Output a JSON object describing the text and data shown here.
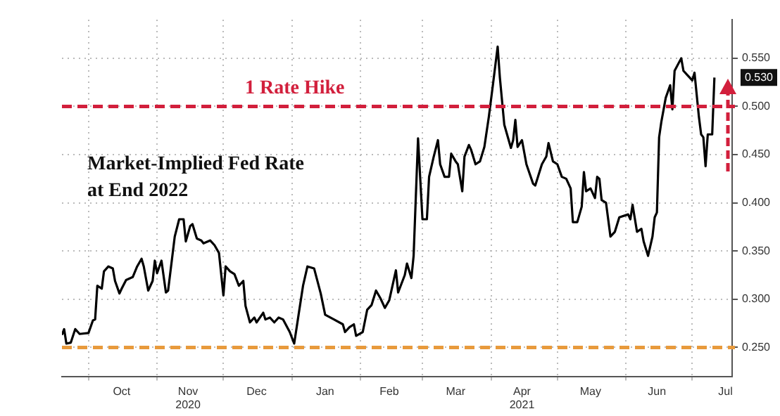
{
  "chart_data": {
    "type": "line",
    "title": "Market-Implied Fed Rate\nat End 2022",
    "x": [
      "2020-09-19",
      "2020-09-20",
      "2020-09-21",
      "2020-09-23",
      "2020-09-25",
      "2020-09-27",
      "2020-10-01",
      "2020-10-03",
      "2020-10-04",
      "2020-10-05",
      "2020-10-07",
      "2020-10-08",
      "2020-10-10",
      "2020-10-12",
      "2020-10-13",
      "2020-10-15",
      "2020-10-16",
      "2020-10-18",
      "2020-10-21",
      "2020-10-23",
      "2020-10-25",
      "2020-10-26",
      "2020-10-28",
      "2020-10-30",
      "2020-10-31",
      "2020-11-01",
      "2020-11-03",
      "2020-11-05",
      "2020-11-06",
      "2020-11-09",
      "2020-11-11",
      "2020-11-13",
      "2020-11-14",
      "2020-11-16",
      "2020-11-17",
      "2020-11-19",
      "2020-11-21",
      "2020-11-22",
      "2020-11-25",
      "2020-11-27",
      "2020-11-29",
      "2020-12-01",
      "2020-12-02",
      "2020-12-04",
      "2020-12-06",
      "2020-12-08",
      "2020-12-10",
      "2020-12-11",
      "2020-12-13",
      "2020-12-15",
      "2020-12-16",
      "2020-12-19",
      "2020-12-20",
      "2020-12-22",
      "2020-12-24",
      "2020-12-26",
      "2020-12-28",
      "2020-12-31",
      "2021-01-02",
      "2021-01-04",
      "2021-01-06",
      "2021-01-08",
      "2021-01-11",
      "2021-01-14",
      "2021-01-16",
      "2021-01-20",
      "2021-01-24",
      "2021-01-25",
      "2021-01-27",
      "2021-01-29",
      "2021-01-30",
      "2021-02-02",
      "2021-02-04",
      "2021-02-06",
      "2021-02-08",
      "2021-02-10",
      "2021-02-12",
      "2021-02-14",
      "2021-02-17",
      "2021-02-18",
      "2021-02-21",
      "2021-02-22",
      "2021-02-24",
      "2021-02-25",
      "2021-02-27",
      "2021-03-01",
      "2021-03-03",
      "2021-03-04",
      "2021-03-06",
      "2021-03-08",
      "2021-03-09",
      "2021-03-11",
      "2021-03-13",
      "2021-03-14",
      "2021-03-16",
      "2021-03-17",
      "2021-03-19",
      "2021-03-20",
      "2021-03-22",
      "2021-03-23",
      "2021-03-25",
      "2021-03-27",
      "2021-03-29",
      "2021-03-31",
      "2021-04-02",
      "2021-04-04",
      "2021-04-05",
      "2021-04-07",
      "2021-04-10",
      "2021-04-11",
      "2021-04-12",
      "2021-04-13",
      "2021-04-15",
      "2021-04-17",
      "2021-04-20",
      "2021-04-21",
      "2021-04-24",
      "2021-04-26",
      "2021-04-27",
      "2021-04-29",
      "2021-05-01",
      "2021-05-03",
      "2021-05-05",
      "2021-05-07",
      "2021-05-08",
      "2021-05-10",
      "2021-05-12",
      "2021-05-13",
      "2021-05-14",
      "2021-05-16",
      "2021-05-18",
      "2021-05-19",
      "2021-05-20",
      "2021-05-21",
      "2021-05-23",
      "2021-05-25",
      "2021-05-27",
      "2021-05-29",
      "2021-06-02",
      "2021-06-03",
      "2021-06-04",
      "2021-06-06",
      "2021-06-08",
      "2021-06-09",
      "2021-06-11",
      "2021-06-13",
      "2021-06-14",
      "2021-06-15",
      "2021-06-16",
      "2021-06-17",
      "2021-06-19",
      "2021-06-21",
      "2021-06-22",
      "2021-06-23",
      "2021-06-26",
      "2021-06-27",
      "2021-06-29",
      "2021-07-01",
      "2021-07-02",
      "2021-07-04",
      "2021-07-05",
      "2021-07-06",
      "2021-07-07",
      "2021-07-08",
      "2021-07-10",
      "2021-07-11"
    ],
    "series": [
      {
        "color": "#000000",
        "values": [
          0.263,
          0.269,
          0.254,
          0.255,
          0.269,
          0.264,
          0.265,
          0.278,
          0.279,
          0.314,
          0.311,
          0.329,
          0.334,
          0.332,
          0.319,
          0.306,
          0.311,
          0.32,
          0.323,
          0.334,
          0.342,
          0.334,
          0.309,
          0.319,
          0.34,
          0.327,
          0.34,
          0.307,
          0.309,
          0.365,
          0.383,
          0.383,
          0.36,
          0.376,
          0.378,
          0.363,
          0.361,
          0.358,
          0.361,
          0.356,
          0.348,
          0.304,
          0.334,
          0.329,
          0.326,
          0.314,
          0.319,
          0.293,
          0.276,
          0.281,
          0.276,
          0.286,
          0.279,
          0.281,
          0.276,
          0.281,
          0.279,
          0.266,
          0.254,
          0.284,
          0.314,
          0.334,
          0.332,
          0.306,
          0.284,
          0.279,
          0.274,
          0.266,
          0.271,
          0.274,
          0.262,
          0.266,
          0.289,
          0.294,
          0.309,
          0.301,
          0.291,
          0.299,
          0.33,
          0.307,
          0.325,
          0.337,
          0.322,
          0.345,
          0.467,
          0.383,
          0.383,
          0.427,
          0.447,
          0.465,
          0.44,
          0.427,
          0.427,
          0.451,
          0.443,
          0.44,
          0.412,
          0.448,
          0.46,
          0.455,
          0.44,
          0.443,
          0.458,
          0.489,
          0.525,
          0.562,
          0.53,
          0.481,
          0.457,
          0.465,
          0.486,
          0.458,
          0.465,
          0.44,
          0.42,
          0.418,
          0.44,
          0.448,
          0.462,
          0.443,
          0.44,
          0.427,
          0.425,
          0.415,
          0.38,
          0.38,
          0.396,
          0.432,
          0.412,
          0.415,
          0.405,
          0.427,
          0.425,
          0.403,
          0.4,
          0.365,
          0.37,
          0.385,
          0.388,
          0.383,
          0.398,
          0.37,
          0.373,
          0.36,
          0.345,
          0.365,
          0.385,
          0.39,
          0.468,
          0.484,
          0.509,
          0.522,
          0.497,
          0.537,
          0.55,
          0.537,
          0.532,
          0.527,
          0.535,
          0.489,
          0.471,
          0.468,
          0.438,
          0.471,
          0.471,
          0.53
        ]
      }
    ],
    "xlim": [
      "2020-09-19",
      "2021-07-19"
    ],
    "xticks": [
      {
        "value": "2020-10-01",
        "label": null
      },
      {
        "value": "2020-10-16",
        "label": "Oct"
      },
      {
        "value": "2020-11-01",
        "label": null
      },
      {
        "value": "2020-11-15",
        "label": "Nov\n2020"
      },
      {
        "value": "2020-12-01",
        "label": null
      },
      {
        "value": "2020-12-16",
        "label": "Dec"
      },
      {
        "value": "2021-01-01",
        "label": null
      },
      {
        "value": "2021-01-16",
        "label": "Jan"
      },
      {
        "value": "2021-02-01",
        "label": null
      },
      {
        "value": "2021-02-14",
        "label": "Feb"
      },
      {
        "value": "2021-03-01",
        "label": null
      },
      {
        "value": "2021-03-16",
        "label": "Mar"
      },
      {
        "value": "2021-04-01",
        "label": null
      },
      {
        "value": "2021-04-15",
        "label": "Apr\n2021"
      },
      {
        "value": "2021-05-01",
        "label": null
      },
      {
        "value": "2021-05-16",
        "label": "May"
      },
      {
        "value": "2021-06-01",
        "label": null
      },
      {
        "value": "2021-06-15",
        "label": "Jun"
      },
      {
        "value": "2021-07-01",
        "label": null
      },
      {
        "value": "2021-07-16",
        "label": "Jul"
      }
    ],
    "ylim": [
      0.22,
      0.59
    ],
    "yticks": [
      {
        "value": 0.25,
        "label": "0.250"
      },
      {
        "value": 0.3,
        "label": "0.300"
      },
      {
        "value": 0.35,
        "label": "0.350"
      },
      {
        "value": 0.4,
        "label": "0.400"
      },
      {
        "value": 0.45,
        "label": "0.450"
      },
      {
        "value": 0.5,
        "label": "0.500"
      },
      {
        "value": 0.55,
        "label": "0.550"
      }
    ],
    "ref_lines": [
      {
        "axis": "y",
        "value": 0.5,
        "label": "1 Rate Hike",
        "color": "#d21f3c",
        "line_style": "dashed"
      },
      {
        "axis": "y",
        "value": 0.25,
        "color": "#e89a3c",
        "line_style": "dashed"
      }
    ],
    "annotations": [
      {
        "text": "0.530",
        "x": "2021-07-11",
        "y": 0.53
      }
    ],
    "grid": true,
    "line_style": "solid",
    "marker": "none"
  }
}
